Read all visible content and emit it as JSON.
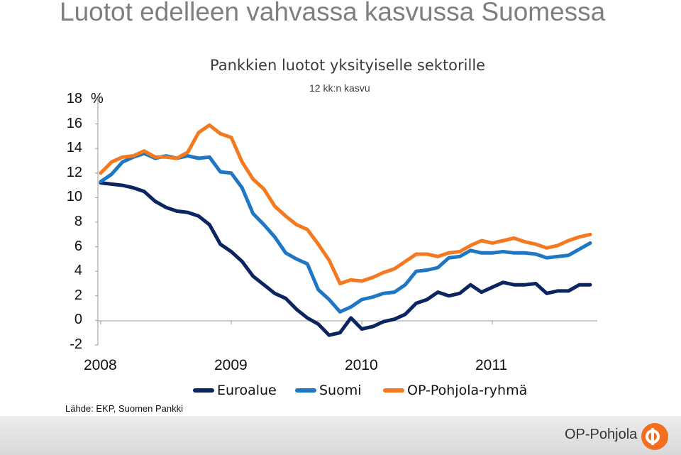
{
  "slide_title": "Luotot edelleen vahvassa kasvussa Suomessa",
  "source_note": "Lähde: EKP, Suomen Pankki",
  "brand": {
    "name": "OP-Pohjola",
    "logo_icon": "op-pohjola-logo-icon",
    "logo_color": "#f26e21"
  },
  "chart_data": {
    "type": "line",
    "title": "Pankkien luotot yksityiselle sektorille",
    "subtitle": "12 kk:n kasvu",
    "ylabel": "%",
    "xlabel": "",
    "ylim": [
      -2,
      18
    ],
    "yticks": [
      "18",
      "16",
      "14",
      "12",
      "10",
      "8",
      "6",
      "4",
      "2",
      "0",
      "-2"
    ],
    "x_start": 2008.0,
    "x_step_months": 1,
    "x_ticks": [
      {
        "label": "2008",
        "x": 2008
      },
      {
        "label": "2009",
        "x": 2009
      },
      {
        "label": "2010",
        "x": 2010
      },
      {
        "label": "2011",
        "x": 2011
      }
    ],
    "grid": false,
    "legend": "bottom",
    "series": [
      {
        "name": "Euroalue",
        "color": "#0b2560",
        "values": [
          11.2,
          11.1,
          11.0,
          10.8,
          10.5,
          9.7,
          9.2,
          8.9,
          8.8,
          8.5,
          7.8,
          6.2,
          5.6,
          4.8,
          3.6,
          2.9,
          2.2,
          1.8,
          0.9,
          0.2,
          -0.3,
          -1.2,
          -1.0,
          0.2,
          -0.7,
          -0.5,
          -0.1,
          0.1,
          0.5,
          1.4,
          1.7,
          2.3,
          2.0,
          2.2,
          2.9,
          2.3,
          2.7,
          3.1,
          2.9,
          2.9,
          3.0,
          2.2,
          2.4,
          2.4,
          2.9,
          2.9
        ]
      },
      {
        "name": "Suomi",
        "color": "#1f77c4",
        "values": [
          11.3,
          11.9,
          12.9,
          13.3,
          13.6,
          13.2,
          13.4,
          13.2,
          13.4,
          13.2,
          13.3,
          12.1,
          12.0,
          10.8,
          8.7,
          7.8,
          6.8,
          5.5,
          5.0,
          4.6,
          2.5,
          1.7,
          0.7,
          1.1,
          1.7,
          1.9,
          2.2,
          2.3,
          2.9,
          4.0,
          4.1,
          4.3,
          5.1,
          5.2,
          5.7,
          5.5,
          5.5,
          5.6,
          5.5,
          5.5,
          5.4,
          5.1,
          5.2,
          5.3,
          5.8,
          6.3
        ]
      },
      {
        "name": "OP-Pohjola-ryhmä",
        "color": "#f47920",
        "values": [
          12.0,
          12.9,
          13.3,
          13.4,
          13.8,
          13.3,
          13.3,
          13.2,
          13.7,
          15.3,
          15.9,
          15.2,
          14.9,
          12.9,
          11.5,
          10.7,
          9.3,
          8.5,
          7.8,
          7.4,
          6.2,
          4.9,
          3.0,
          3.3,
          3.2,
          3.5,
          3.9,
          4.2,
          4.8,
          5.4,
          5.4,
          5.2,
          5.5,
          5.6,
          6.1,
          6.5,
          6.3,
          6.5,
          6.7,
          6.4,
          6.2,
          5.9,
          6.1,
          6.5,
          6.8,
          7.0
        ]
      }
    ]
  }
}
